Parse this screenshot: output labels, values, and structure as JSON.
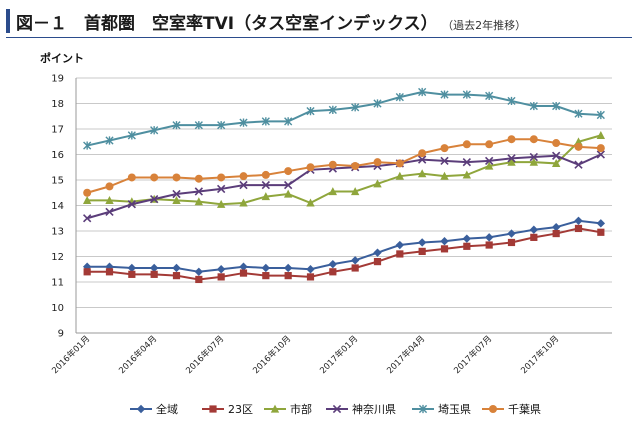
{
  "title": {
    "main": "図－１　首都圏　空室率TVI（タス空室インデックス）",
    "sub": "（過去2年推移）"
  },
  "chart_data": {
    "type": "line",
    "title": "首都圏　空室率TVI（タス空室インデックス）",
    "ylabel": "ポイント",
    "xlabel": "",
    "ylim": [
      9,
      19
    ],
    "yticks": [
      9,
      10,
      11,
      12,
      13,
      14,
      15,
      16,
      17,
      18,
      19
    ],
    "grid": true,
    "legend": "bottom",
    "x": [
      "2016年01月",
      "2016年02月",
      "2016年03月",
      "2016年04月",
      "2016年05月",
      "2016年06月",
      "2016年07月",
      "2016年08月",
      "2016年09月",
      "2016年10月",
      "2016年11月",
      "2016年12月",
      "2017年01月",
      "2017年02月",
      "2017年03月",
      "2017年04月",
      "2017年05月",
      "2017年06月",
      "2017年07月",
      "2017年08月",
      "2017年09月",
      "2017年10月",
      "2017年11月",
      "2017年12月"
    ],
    "x_tick_labels": [
      "2016年01月",
      "2016年04月",
      "2016年07月",
      "2016年10月",
      "2017年01月",
      "2017年04月",
      "2017年07月",
      "2017年10月"
    ],
    "x_tick_index": [
      0,
      3,
      6,
      9,
      12,
      15,
      18,
      21
    ],
    "series": [
      {
        "name": "全域",
        "color": "#3a5f9c",
        "marker": "diamond",
        "values": [
          11.6,
          11.6,
          11.55,
          11.55,
          11.55,
          11.4,
          11.5,
          11.6,
          11.55,
          11.55,
          11.5,
          11.7,
          11.85,
          12.15,
          12.45,
          12.55,
          12.6,
          12.7,
          12.75,
          12.9,
          13.05,
          13.15,
          13.4,
          13.3
        ]
      },
      {
        "name": "23区",
        "color": "#a33a36",
        "marker": "square",
        "values": [
          11.4,
          11.4,
          11.3,
          11.3,
          11.25,
          11.1,
          11.2,
          11.35,
          11.25,
          11.25,
          11.2,
          11.4,
          11.55,
          11.8,
          12.1,
          12.2,
          12.3,
          12.4,
          12.45,
          12.55,
          12.75,
          12.9,
          13.1,
          12.95
        ]
      },
      {
        "name": "市部",
        "color": "#8fa63c",
        "marker": "triangle",
        "values": [
          14.2,
          14.2,
          14.15,
          14.25,
          14.2,
          14.15,
          14.05,
          14.1,
          14.35,
          14.45,
          14.1,
          14.55,
          14.55,
          14.85,
          15.15,
          15.25,
          15.15,
          15.2,
          15.55,
          15.7,
          15.7,
          15.65,
          16.5,
          16.75
        ]
      },
      {
        "name": "神奈川県",
        "color": "#5b3d7a",
        "marker": "x",
        "values": [
          13.5,
          13.75,
          14.05,
          14.25,
          14.45,
          14.55,
          14.65,
          14.8,
          14.8,
          14.8,
          15.4,
          15.45,
          15.5,
          15.55,
          15.65,
          15.8,
          15.75,
          15.7,
          15.75,
          15.85,
          15.9,
          15.95,
          15.6,
          16.0
        ]
      },
      {
        "name": "埼玉県",
        "color": "#4f8fa0",
        "marker": "star",
        "values": [
          16.35,
          16.55,
          16.75,
          16.95,
          17.15,
          17.15,
          17.15,
          17.25,
          17.3,
          17.3,
          17.7,
          17.75,
          17.85,
          18.0,
          18.25,
          18.45,
          18.35,
          18.35,
          18.3,
          18.1,
          17.9,
          17.9,
          17.6,
          17.55
        ]
      },
      {
        "name": "千葉県",
        "color": "#d8823a",
        "marker": "circle",
        "values": [
          14.5,
          14.75,
          15.1,
          15.1,
          15.1,
          15.05,
          15.1,
          15.15,
          15.2,
          15.35,
          15.5,
          15.6,
          15.55,
          15.7,
          15.65,
          16.05,
          16.25,
          16.4,
          16.4,
          16.6,
          16.6,
          16.45,
          16.3,
          16.25
        ]
      }
    ]
  }
}
